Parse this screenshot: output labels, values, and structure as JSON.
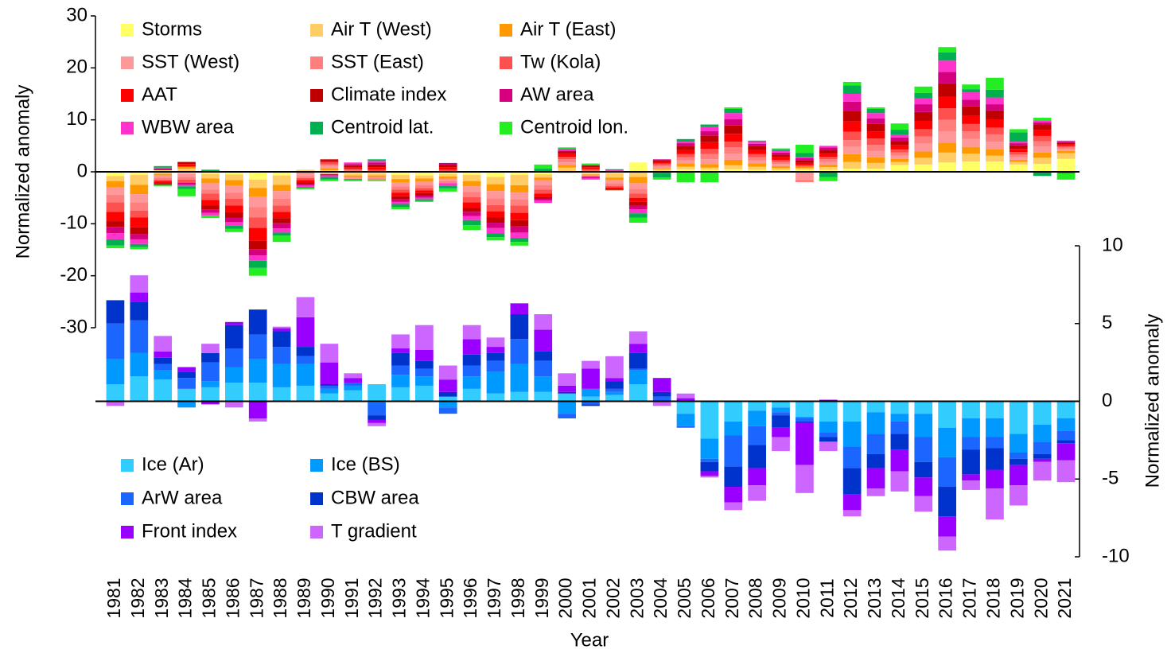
{
  "chart_data": {
    "type": "bar",
    "stacked": true,
    "xlabel": "Year",
    "ylabel": "Normalized anomaly",
    "y2label": "Normalized anomaly",
    "ylim": [
      -30,
      30
    ],
    "yticks": [
      30,
      20,
      10,
      0,
      -10,
      -20,
      -30
    ],
    "y2lim": [
      -10,
      10
    ],
    "y2ticks": [
      10,
      5,
      0,
      -5,
      -10
    ],
    "legend": {
      "y": "upper left",
      "y2": "lower left"
    },
    "categories": [
      "1981",
      "1982",
      "1983",
      "1984",
      "1985",
      "1986",
      "1987",
      "1988",
      "1989",
      "1990",
      "1991",
      "1992",
      "1993",
      "1994",
      "1995",
      "1996",
      "1997",
      "1998",
      "1999",
      "2000",
      "2001",
      "2002",
      "2003",
      "2004",
      "2005",
      "2006",
      "2007",
      "2008",
      "2009",
      "2010",
      "2011",
      "2012",
      "2013",
      "2014",
      "2015",
      "2016",
      "2017",
      "2018",
      "2019",
      "2020",
      "2021"
    ],
    "series": [
      {
        "name": "Storms",
        "color": "#ffff66",
        "values": [
          -0.8,
          -0.6,
          0.3,
          -0.3,
          -0.4,
          -0.5,
          -1.5,
          -0.7,
          0.2,
          -0.4,
          -0.3,
          -0.3,
          -0.6,
          -0.7,
          -0.4,
          -0.6,
          -1,
          -0.6,
          -0.5,
          -0.3,
          -0.3,
          -0.3,
          1.8,
          0.2,
          0.5,
          0.4,
          0.5,
          0.4,
          0.3,
          0.4,
          0.4,
          0.6,
          0.6,
          1.3,
          1.4,
          1.8,
          2,
          2,
          1.4,
          1.5,
          2.5
        ]
      },
      {
        "name": "Air T (West)",
        "color": "#ffcc66",
        "values": [
          -1,
          -1.9,
          -0.4,
          0.6,
          -0.9,
          -1.1,
          -1.6,
          -1.8,
          0.2,
          0.3,
          -0.4,
          -0.4,
          -0.8,
          -0.6,
          -0.5,
          -1.2,
          -1.4,
          -2,
          -0.6,
          0.8,
          -0.2,
          -0.8,
          -1,
          0.3,
          0.5,
          0.4,
          0.8,
          0.6,
          0.4,
          0.3,
          0.5,
          1.3,
          1.1,
          0.6,
          1.3,
          1.9,
          1.5,
          1.1,
          0.5,
          1.2,
          1.1
        ]
      },
      {
        "name": "Air T (East)",
        "color": "#ff9900",
        "values": [
          -1.2,
          -1.8,
          -0.3,
          0.4,
          -0.9,
          -1,
          -1.7,
          -1.2,
          -0.3,
          0.4,
          -0.3,
          -0.3,
          -0.7,
          -0.6,
          -0.4,
          -1,
          -1.3,
          -1.4,
          -0.5,
          0.5,
          -0.2,
          -0.5,
          -1.2,
          0.2,
          0.6,
          0.7,
          1,
          0.6,
          0.4,
          0.3,
          0.5,
          1.5,
          1.1,
          0.6,
          1.2,
          1.9,
          1.3,
          1.3,
          0.4,
          1,
          0.4
        ]
      },
      {
        "name": "SST (West)",
        "color": "#ff9999",
        "values": [
          -1.4,
          -1.6,
          -0.4,
          -0.7,
          -1.2,
          -1.4,
          -2,
          -1.5,
          -0.5,
          0.4,
          -0.4,
          -0.3,
          -0.7,
          -0.6,
          -0.5,
          -1.1,
          -1.4,
          -1.3,
          -1,
          0.5,
          -0.2,
          -0.6,
          -1.1,
          0.3,
          0.6,
          0.9,
          1.2,
          0.6,
          0.4,
          -1.5,
          0.5,
          1.4,
          1.2,
          0.6,
          1.5,
          2.2,
          1.5,
          1.4,
          0.5,
          1.2,
          0.4
        ]
      },
      {
        "name": "SST (East)",
        "color": "#ff7f7f",
        "values": [
          -1.5,
          -1.6,
          -0.4,
          -0.5,
          -0.8,
          -1.2,
          -2,
          -1.3,
          -0.4,
          0.3,
          0.3,
          -0.3,
          -0.6,
          -0.6,
          -0.4,
          -1,
          -1.3,
          -1.2,
          -0.8,
          0.6,
          0.2,
          -0.5,
          -0.9,
          0.3,
          0.6,
          1,
          1.2,
          0.6,
          0.4,
          -0.5,
          0.5,
          1.3,
          1.2,
          0.6,
          1.4,
          2.2,
          1.5,
          1.4,
          0.5,
          1,
          0.3
        ]
      },
      {
        "name": "Tw (Kola)",
        "color": "#ff5050",
        "values": [
          -1.8,
          -1.3,
          -0.3,
          -0.6,
          -1.2,
          -1.3,
          -2,
          -1.2,
          -0.4,
          0.4,
          0.3,
          0.4,
          -0.6,
          -0.5,
          0.4,
          -1,
          -1.2,
          -1.4,
          -0.8,
          0.5,
          0.3,
          -0.3,
          -0.8,
          0.3,
          0.6,
          1,
          1.1,
          0.6,
          0.4,
          0.3,
          0.5,
          1.6,
          1.2,
          0.6,
          1.4,
          2.2,
          1.4,
          1.3,
          0.5,
          1,
          0.3
        ]
      },
      {
        "name": "AAT",
        "color": "#ff0000",
        "values": [
          -1.8,
          -1.9,
          -0.4,
          0.5,
          -1.1,
          -1.3,
          -2.5,
          -1.2,
          -0.4,
          0.3,
          0.3,
          0.5,
          -0.7,
          -0.5,
          0.5,
          -1,
          -1.2,
          -1.4,
          -0.6,
          0.6,
          0.4,
          -0.3,
          -0.8,
          0.3,
          0.8,
          1.3,
          1.5,
          0.8,
          0.5,
          0.4,
          0.6,
          2,
          1.3,
          0.8,
          1.6,
          2.2,
          1.6,
          1.6,
          0.6,
          1.2,
          0.3
        ]
      },
      {
        "name": "Climate index",
        "color": "#c00000",
        "values": [
          -1.1,
          -1.3,
          -0.3,
          0.4,
          -0.8,
          -1,
          -1.6,
          -1,
          -0.3,
          0.3,
          0.3,
          0.5,
          -0.6,
          -0.5,
          0.4,
          -0.8,
          -1,
          -1.2,
          -0.4,
          0.4,
          0.3,
          -0.2,
          -0.7,
          0.3,
          0.8,
          1.3,
          1.6,
          0.8,
          0.5,
          0.5,
          0.7,
          2,
          1.5,
          0.8,
          1.7,
          2.6,
          1.8,
          1.7,
          0.7,
          1,
          0.3
        ]
      },
      {
        "name": "AW area",
        "color": "#d6007f",
        "values": [
          -1.2,
          -1,
          0.3,
          -0.4,
          -0.6,
          -0.9,
          -1.2,
          -1,
          -0.3,
          -0.3,
          0.3,
          0.4,
          -0.5,
          -0.4,
          0.4,
          -0.8,
          -1,
          -1.2,
          -0.3,
          0.2,
          -0.3,
          0.2,
          -0.7,
          0.2,
          0.5,
          0.8,
          1.2,
          0.4,
          0.4,
          0.4,
          0.5,
          1.8,
          1.1,
          0.7,
          1.5,
          2.2,
          1.3,
          1.2,
          0.4,
          0.4,
          0.2
        ]
      },
      {
        "name": "WBW area",
        "color": "#ff33cc",
        "values": [
          -1.2,
          -0.9,
          0.2,
          -0.3,
          -0.5,
          -0.7,
          -1,
          -0.8,
          -0.3,
          -0.3,
          0.3,
          0.3,
          -0.4,
          -0.3,
          -0.5,
          -0.8,
          -1,
          -1,
          -0.5,
          0.2,
          -0.3,
          0.1,
          -0.8,
          -0.3,
          0.3,
          0.8,
          1.2,
          0.4,
          0.3,
          0.2,
          0.3,
          1.5,
          1,
          0.5,
          1.1,
          2.2,
          1.4,
          1.3,
          0.3,
          0.4,
          0.2
        ]
      },
      {
        "name": "Centroid lat.",
        "color": "#00b050",
        "values": [
          -1.2,
          -0.6,
          0.3,
          -0.5,
          0.4,
          -0.6,
          -1.4,
          -0.6,
          -0.2,
          -0.5,
          -0.2,
          0.3,
          -0.6,
          -0.3,
          -0.5,
          -1,
          -0.8,
          -0.8,
          0.6,
          0.2,
          0.2,
          0.2,
          -0.8,
          -0.8,
          0.5,
          0.5,
          0.8,
          0.2,
          0.3,
          0.8,
          -1,
          1.6,
          0.8,
          1,
          1.1,
          1.6,
          0.6,
          1.5,
          1.8,
          -0.8,
          -0.3
        ]
      },
      {
        "name": "Centroid lon.",
        "color": "#22ee22",
        "values": [
          -0.5,
          -0.4,
          -0.3,
          -1.4,
          -0.5,
          -0.6,
          -1.5,
          -1.2,
          -0.3,
          -0.3,
          -0.2,
          -0.2,
          -0.4,
          -0.2,
          -0.6,
          -0.9,
          -0.6,
          -0.7,
          0.8,
          0.2,
          0.2,
          -0.1,
          -1,
          -0.4,
          -2,
          -2,
          0.3,
          -0.2,
          0.2,
          1.6,
          -0.8,
          0.7,
          0.3,
          1.2,
          1.2,
          1,
          0.9,
          2.3,
          0.6,
          0.5,
          -1.2
        ]
      },
      {
        "name": "Ice (Ar)",
        "color": "#33ccff",
        "axis": "y2",
        "values": [
          1.1,
          1.6,
          1.4,
          0.8,
          0.9,
          1.2,
          1.2,
          0.9,
          1,
          0.5,
          0.7,
          1.1,
          0.9,
          1,
          0.3,
          0.8,
          0.5,
          0.6,
          0.6,
          0.5,
          0.3,
          0.4,
          1.1,
          0,
          -0.8,
          -2.4,
          -1.3,
          -0.6,
          -0.4,
          -1,
          -1.3,
          -1.3,
          -0.7,
          -0.8,
          -0.8,
          -1.7,
          -1.1,
          -1.1,
          -2.1,
          -1.5,
          -1.1
        ]
      },
      {
        "name": "Ice (BS)",
        "color": "#0099ff",
        "axis": "y2",
        "values": [
          1.6,
          1.5,
          0.6,
          -0.4,
          0.4,
          1,
          1.5,
          1.5,
          1.4,
          0.3,
          0.3,
          -0.1,
          0.8,
          0.6,
          -0.4,
          0.8,
          1.4,
          1.8,
          1,
          -0.8,
          0.5,
          0.2,
          0.9,
          0,
          -0.8,
          -1.3,
          -0.9,
          -1,
          -0.3,
          -0.1,
          -0.7,
          -1.6,
          -1.4,
          -0.5,
          -1.5,
          -1.9,
          -1.2,
          -1.2,
          -1.2,
          -1.1,
          -0.8
        ]
      },
      {
        "name": "ArW area",
        "color": "#1a66ff",
        "axis": "y2",
        "values": [
          2.3,
          2.1,
          0.4,
          0.7,
          1.2,
          1.2,
          1.6,
          1.1,
          0.5,
          0.2,
          0.2,
          -0.8,
          0.6,
          0.5,
          -0.4,
          0.7,
          0.7,
          1.6,
          1,
          -0.3,
          -0.2,
          0.2,
          0.1,
          0.3,
          -0.1,
          -0.2,
          -2,
          -1.2,
          -0.2,
          -0.2,
          -0.3,
          -1.4,
          -1.3,
          -0.8,
          -1.6,
          -1.9,
          -0.8,
          -0.7,
          -0.4,
          -0.8,
          -0.6
        ]
      },
      {
        "name": "CBW area",
        "color": "#0033cc",
        "axis": "y2",
        "values": [
          1.5,
          1.2,
          0.4,
          0.4,
          0.6,
          1.5,
          1.6,
          1,
          0.6,
          0.1,
          0,
          -0.3,
          0.8,
          0.5,
          0.3,
          0.7,
          0.5,
          1.6,
          0.6,
          0.1,
          -0.1,
          0.5,
          1,
          0.3,
          0,
          -0.6,
          -1.3,
          -1.5,
          -0.8,
          -0.1,
          -0.3,
          -1.7,
          -0.9,
          -1,
          -1,
          -1.9,
          -1.6,
          -1.4,
          -0.4,
          -0.3,
          -0.2
        ]
      },
      {
        "name": "Front index",
        "color": "#9900ff",
        "axis": "y2",
        "values": [
          0,
          0.6,
          0.4,
          0.3,
          -0.2,
          0.2,
          -1.1,
          0.2,
          1.9,
          1.4,
          0.3,
          -0.2,
          0.3,
          0.7,
          0.8,
          1,
          0.4,
          0.7,
          1.4,
          0.4,
          1.3,
          0.2,
          0.6,
          0.9,
          0.2,
          -0.3,
          -1,
          -1.1,
          -0.6,
          -2.7,
          0.1,
          -1,
          -1.3,
          -1.4,
          -1.2,
          -1.3,
          -0.4,
          -1.2,
          -1.3,
          -0.2,
          -1.1
        ]
      },
      {
        "name": "T gradient",
        "color": "#cc66ff",
        "axis": "y2",
        "values": [
          -0.3,
          1.1,
          1,
          0,
          0.6,
          -0.4,
          -0.2,
          0.1,
          1.3,
          1.2,
          0.3,
          -0.2,
          0.9,
          1.6,
          0.9,
          0.9,
          0.6,
          0,
          1,
          0.8,
          0.5,
          1.4,
          0.8,
          -0.3,
          0.3,
          -0.1,
          -0.5,
          -1,
          -0.9,
          -1.8,
          -0.6,
          -0.4,
          -0.5,
          -1.3,
          -1,
          -0.9,
          -0.6,
          -2,
          -1.3,
          -1.2,
          -1.4
        ]
      }
    ]
  }
}
